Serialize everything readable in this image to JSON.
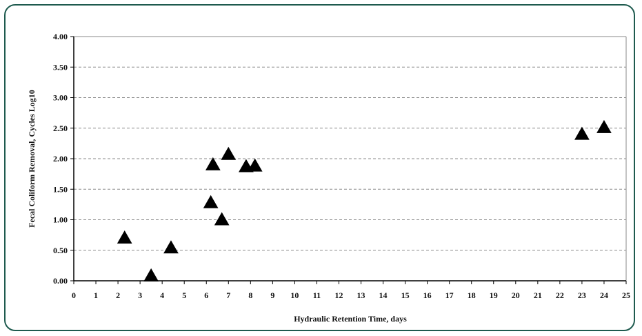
{
  "chart_data": {
    "type": "scatter",
    "title": "",
    "xlabel": "Hydraulic Retention Time, days",
    "ylabel": "Fecal Coliform Removal, Cycles Log10",
    "xlim": [
      0,
      25
    ],
    "ylim": [
      0,
      4
    ],
    "x_ticks": [
      0,
      1,
      2,
      3,
      4,
      5,
      6,
      7,
      8,
      9,
      10,
      11,
      12,
      13,
      14,
      15,
      16,
      17,
      18,
      19,
      20,
      21,
      22,
      23,
      24,
      25
    ],
    "y_ticks": [
      "0.00",
      "0.50",
      "1.00",
      "1.50",
      "2.00",
      "2.50",
      "3.00",
      "3.50",
      "4.00"
    ],
    "grid": "horizontal-dashed",
    "marker": "triangle",
    "marker_color": "#000000",
    "series": [
      {
        "points": [
          {
            "x": 2.3,
            "y": 0.7
          },
          {
            "x": 3.5,
            "y": 0.08
          },
          {
            "x": 4.4,
            "y": 0.54
          },
          {
            "x": 6.2,
            "y": 1.28
          },
          {
            "x": 6.3,
            "y": 1.9
          },
          {
            "x": 6.7,
            "y": 1.0
          },
          {
            "x": 7.0,
            "y": 2.07
          },
          {
            "x": 7.8,
            "y": 1.87
          },
          {
            "x": 8.2,
            "y": 1.88
          },
          {
            "x": 23.0,
            "y": 2.4
          },
          {
            "x": 24.0,
            "y": 2.51
          }
        ]
      }
    ]
  }
}
